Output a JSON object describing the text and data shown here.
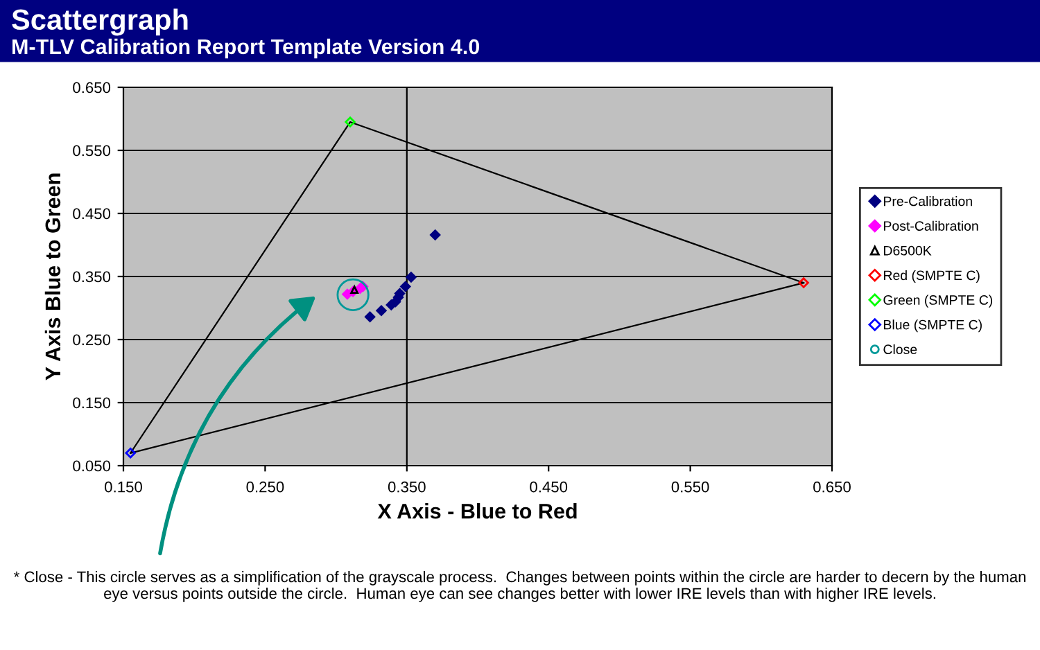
{
  "chart_data": {
    "type": "scatter",
    "title": "Scattergraph",
    "subtitle": "M-TLV Calibration Report Template Version 4.0",
    "xlabel": "X Axis - Blue to Red",
    "ylabel": "Y Axis Blue to Green",
    "xlim": [
      0.15,
      0.65
    ],
    "xticks": [
      {
        "value": 0.15,
        "label": "0.150"
      },
      {
        "value": 0.25,
        "label": "0.250"
      },
      {
        "value": 0.35,
        "label": "0.350"
      },
      {
        "value": 0.45,
        "label": "0.450"
      },
      {
        "value": 0.55,
        "label": "0.550"
      },
      {
        "value": 0.65,
        "label": "0.650"
      }
    ],
    "ylim": [
      0.05,
      0.65
    ],
    "yticks": [
      {
        "value": 0.05,
        "label": "0.050"
      },
      {
        "value": 0.15,
        "label": "0.150"
      },
      {
        "value": 0.25,
        "label": "0.250"
      },
      {
        "value": 0.35,
        "label": "0.350"
      },
      {
        "value": 0.45,
        "label": "0.450"
      },
      {
        "value": 0.55,
        "label": "0.550"
      },
      {
        "value": 0.65,
        "label": "0.650"
      }
    ],
    "grid": "y",
    "legend": "right",
    "ref_lines": [
      {
        "axis": "x",
        "value": 0.35,
        "color": "#000000"
      }
    ],
    "series": [
      {
        "type": "line",
        "color": "#000000",
        "marker": "none",
        "x": [
          0.155,
          0.31,
          0.63
        ],
        "values": [
          0.07,
          0.595,
          0.34
        ]
      },
      {
        "type": "line",
        "color": "#000000",
        "marker": "none",
        "x": [
          0.155,
          0.63
        ],
        "values": [
          0.07,
          0.34
        ]
      },
      {
        "name": "Pre-Calibration",
        "color": "#000080",
        "marker": "diamond",
        "x": [
          0.324,
          0.332,
          0.339,
          0.342,
          0.344,
          0.345,
          0.349,
          0.353,
          0.37
        ],
        "values": [
          0.286,
          0.296,
          0.305,
          0.31,
          0.317,
          0.323,
          0.334,
          0.349,
          0.416
        ]
      },
      {
        "name": "Post-Calibration",
        "color": "#ff00ff",
        "marker": "diamond",
        "x": [
          0.308,
          0.312,
          0.317,
          0.319
        ],
        "values": [
          0.322,
          0.326,
          0.331,
          0.334
        ]
      },
      {
        "name": "D6500K",
        "color": "#000000",
        "marker": "triangle",
        "x": [
          0.313
        ],
        "values": [
          0.329
        ]
      },
      {
        "name": "Red (SMPTE C)",
        "color": "#ff0000",
        "marker": "diamond",
        "x": [
          0.63
        ],
        "values": [
          0.34
        ]
      },
      {
        "name": "Green (SMPTE C)",
        "color": "#00ff00",
        "marker": "diamond",
        "x": [
          0.31
        ],
        "values": [
          0.595
        ]
      },
      {
        "name": "Blue (SMPTE C)",
        "color": "#0000ff",
        "marker": "diamond",
        "x": [
          0.155
        ],
        "values": [
          0.07
        ]
      },
      {
        "name": "Close",
        "color": "#009999",
        "marker": "circle",
        "x": [
          0.312
        ],
        "values": [
          0.321
        ]
      }
    ],
    "annotations": [
      "* Close - This circle serves as a simplification of the grayscale process.  Changes between points within the circle are harder to decern by the human eye versus points outside the circle.  Human eye can see changes better with lower IRE levels than with higher IRE levels."
    ]
  }
}
